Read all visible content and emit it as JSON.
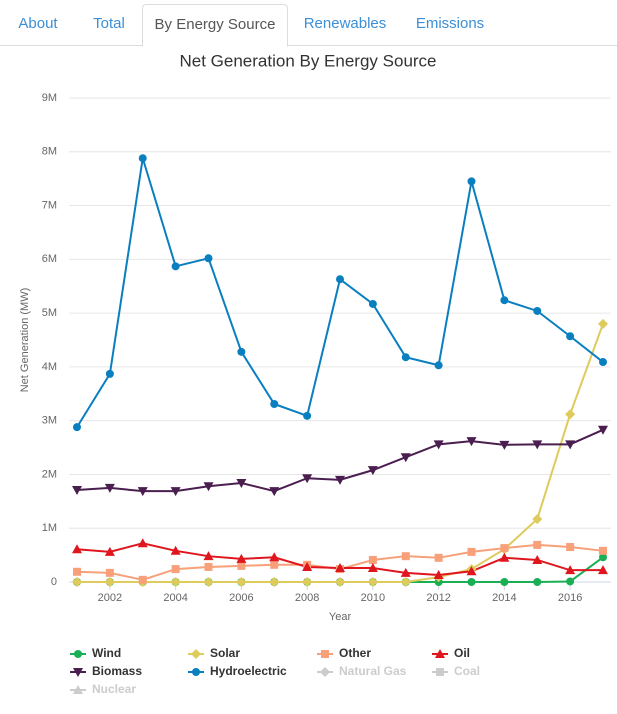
{
  "tabs": [
    "About",
    "Total",
    "By Energy Source",
    "Renewables",
    "Emissions"
  ],
  "active_tab": 2,
  "chart_data": {
    "type": "line",
    "title": "Net Generation By Energy Source",
    "xlabel": "Year",
    "ylabel": "Net Generation (MW)",
    "x": [
      2001,
      2002,
      2003,
      2004,
      2005,
      2006,
      2007,
      2008,
      2009,
      2010,
      2011,
      2012,
      2013,
      2014,
      2015,
      2016,
      2017
    ],
    "xlim": [
      2001,
      2017
    ],
    "xticks": [
      2002,
      2004,
      2006,
      2008,
      2010,
      2012,
      2014,
      2016
    ],
    "ylim": [
      0,
      9000000
    ],
    "yticks": [
      0,
      {
        "value": 1000000,
        "label": "1M"
      },
      {
        "value": 2000000,
        "label": "2M"
      },
      {
        "value": 3000000,
        "label": "3M"
      },
      {
        "value": 4000000,
        "label": "4M"
      },
      {
        "value": 5000000,
        "label": "5M"
      },
      {
        "value": 6000000,
        "label": "6M"
      },
      {
        "value": 7000000,
        "label": "7M"
      },
      {
        "value": 8000000,
        "label": "8M"
      },
      {
        "value": 9000000,
        "label": "9M"
      }
    ],
    "grid": true,
    "legend": "bottom",
    "series": [
      {
        "name": "Wind",
        "color": "#1aaf54",
        "marker": "circle",
        "values": [
          0,
          0,
          0,
          0,
          0,
          0,
          0,
          0,
          0,
          0,
          0,
          0,
          0,
          0,
          0,
          10000,
          460000
        ]
      },
      {
        "name": "Solar",
        "color": "#dfca5c",
        "marker": "diamond",
        "values": [
          0,
          0,
          0,
          0,
          0,
          0,
          0,
          0,
          0,
          0,
          0,
          90000,
          240000,
          610000,
          1170000,
          3120000,
          4800000
        ]
      },
      {
        "name": "Other",
        "color": "#f7a07a",
        "marker": "square",
        "values": [
          190000,
          170000,
          40000,
          240000,
          280000,
          300000,
          320000,
          320000,
          240000,
          410000,
          480000,
          450000,
          560000,
          630000,
          690000,
          650000,
          580000
        ]
      },
      {
        "name": "Oil",
        "color": "#e0161f",
        "marker": "triangle",
        "values": [
          610000,
          560000,
          720000,
          580000,
          480000,
          430000,
          460000,
          280000,
          260000,
          260000,
          170000,
          130000,
          200000,
          450000,
          410000,
          220000,
          220000
        ]
      },
      {
        "name": "Biomass",
        "color": "#4a1e4f",
        "marker": "triangle-down",
        "values": [
          1710000,
          1750000,
          1690000,
          1690000,
          1780000,
          1840000,
          1690000,
          1930000,
          1900000,
          2080000,
          2320000,
          2560000,
          2620000,
          2550000,
          2560000,
          2560000,
          2830000
        ]
      },
      {
        "name": "Hydroelectric",
        "color": "#0a7fbf",
        "marker": "circle",
        "values": [
          2880000,
          3870000,
          7880000,
          5870000,
          6020000,
          4280000,
          3310000,
          3090000,
          5630000,
          5170000,
          4180000,
          4030000,
          7450000,
          5240000,
          5040000,
          4570000,
          4090000
        ]
      },
      {
        "name": "Natural Gas",
        "color": "#cccccc",
        "marker": "diamond",
        "visible": false
      },
      {
        "name": "Coal",
        "color": "#cccccc",
        "marker": "square",
        "visible": false
      },
      {
        "name": "Nuclear",
        "color": "#cccccc",
        "marker": "triangle",
        "visible": false
      }
    ]
  }
}
